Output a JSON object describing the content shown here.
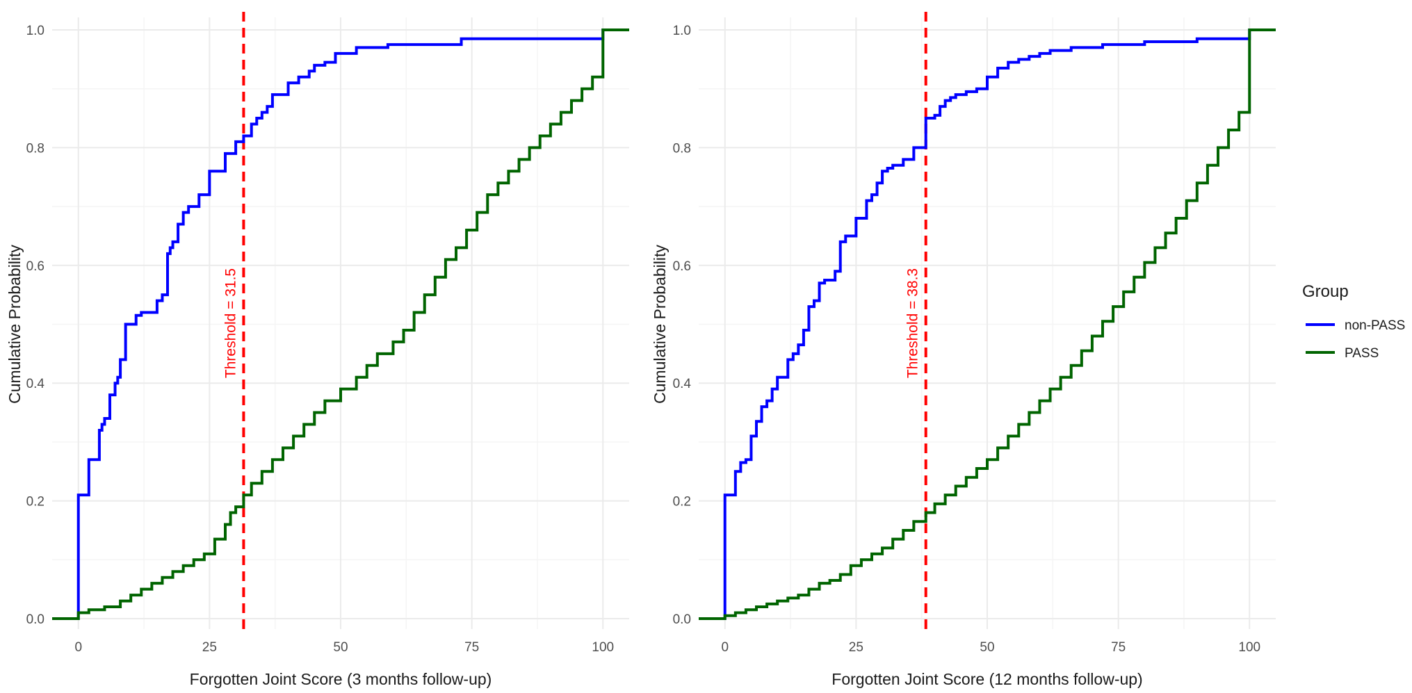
{
  "legend": {
    "title": "Group",
    "items": [
      {
        "label": "non-PASS",
        "color": "#0000FF"
      },
      {
        "label": "PASS",
        "color": "#006400"
      }
    ]
  },
  "colors": {
    "threshold": "#FF0000",
    "grid_major": "#EBEBEB",
    "grid_minor": "#F5F5F5"
  },
  "chart_data": [
    {
      "type": "line",
      "subtype": "step-ecdf",
      "xlabel": "Forgotten Joint Score (3 months follow-up)",
      "ylabel": "Cumulative Probability",
      "xlim": [
        -5,
        105
      ],
      "ylim": [
        0,
        1
      ],
      "xticks": [
        "0",
        "25",
        "50",
        "75",
        "100"
      ],
      "yticks": [
        "0.0",
        "0.2",
        "0.4",
        "0.6",
        "0.8",
        "1.0"
      ],
      "grid": true,
      "threshold": {
        "value": 31.5,
        "label": "Threshold = 31.5"
      },
      "series": [
        {
          "name": "non-PASS",
          "x": [
            -5,
            0,
            2,
            4,
            4.5,
            5,
            6,
            7,
            7.5,
            8,
            9,
            11,
            12,
            13,
            15,
            16,
            17,
            17.5,
            18,
            19,
            20,
            21,
            23,
            25,
            27,
            28,
            30,
            31.5,
            33,
            34,
            35,
            36,
            37,
            38,
            40,
            42,
            44,
            45,
            47,
            49,
            53,
            59,
            73,
            100,
            105
          ],
          "y": [
            0.0,
            0.21,
            0.27,
            0.32,
            0.33,
            0.34,
            0.38,
            0.4,
            0.41,
            0.44,
            0.5,
            0.515,
            0.52,
            0.52,
            0.54,
            0.55,
            0.62,
            0.63,
            0.64,
            0.67,
            0.69,
            0.7,
            0.72,
            0.76,
            0.76,
            0.79,
            0.81,
            0.82,
            0.84,
            0.85,
            0.86,
            0.87,
            0.89,
            0.89,
            0.91,
            0.92,
            0.93,
            0.94,
            0.945,
            0.96,
            0.97,
            0.975,
            0.985,
            1.0,
            1.0
          ]
        },
        {
          "name": "PASS",
          "x": [
            -5,
            0,
            2,
            5,
            8,
            10,
            12,
            14,
            16,
            18,
            20,
            22,
            24,
            26,
            28,
            29,
            30,
            31.5,
            33,
            35,
            37,
            39,
            41,
            43,
            45,
            47,
            50,
            53,
            55,
            57,
            60,
            62,
            64,
            66,
            68,
            70,
            72,
            74,
            76,
            78,
            80,
            82,
            84,
            86,
            88,
            90,
            92,
            94,
            96,
            98,
            100,
            105
          ],
          "y": [
            0.0,
            0.01,
            0.015,
            0.02,
            0.03,
            0.04,
            0.05,
            0.06,
            0.07,
            0.08,
            0.09,
            0.1,
            0.11,
            0.135,
            0.16,
            0.18,
            0.19,
            0.21,
            0.23,
            0.25,
            0.27,
            0.29,
            0.31,
            0.33,
            0.35,
            0.37,
            0.39,
            0.41,
            0.43,
            0.45,
            0.47,
            0.49,
            0.52,
            0.55,
            0.58,
            0.61,
            0.63,
            0.66,
            0.69,
            0.72,
            0.74,
            0.76,
            0.78,
            0.8,
            0.82,
            0.84,
            0.86,
            0.88,
            0.9,
            0.92,
            1.0,
            1.0
          ]
        }
      ]
    },
    {
      "type": "line",
      "subtype": "step-ecdf",
      "xlabel": "Forgotten Joint Score (12 months follow-up)",
      "ylabel": "Cumulative Probability",
      "xlim": [
        -5,
        105
      ],
      "ylim": [
        0,
        1
      ],
      "xticks": [
        "0",
        "25",
        "50",
        "75",
        "100"
      ],
      "yticks": [
        "0.0",
        "0.2",
        "0.4",
        "0.6",
        "0.8",
        "1.0"
      ],
      "grid": true,
      "threshold": {
        "value": 38.3,
        "label": "Threshold = 38.3"
      },
      "series": [
        {
          "name": "non-PASS",
          "x": [
            -5,
            0,
            2,
            3,
            4,
            5,
            6,
            7,
            8,
            9,
            10,
            12,
            13,
            14,
            15,
            16,
            17,
            18,
            19,
            21,
            22,
            23,
            25,
            27,
            28,
            29,
            30,
            31,
            32,
            34,
            36,
            38.3,
            40,
            41,
            42,
            43,
            44,
            46,
            48,
            50,
            52,
            54,
            56,
            58,
            60,
            62,
            66,
            72,
            80,
            90,
            100,
            105
          ],
          "y": [
            0.0,
            0.21,
            0.25,
            0.265,
            0.27,
            0.31,
            0.335,
            0.36,
            0.37,
            0.39,
            0.41,
            0.44,
            0.45,
            0.465,
            0.49,
            0.53,
            0.54,
            0.57,
            0.575,
            0.59,
            0.64,
            0.65,
            0.68,
            0.71,
            0.72,
            0.74,
            0.76,
            0.765,
            0.77,
            0.78,
            0.8,
            0.85,
            0.855,
            0.87,
            0.88,
            0.885,
            0.89,
            0.895,
            0.9,
            0.92,
            0.935,
            0.945,
            0.95,
            0.955,
            0.96,
            0.965,
            0.97,
            0.975,
            0.98,
            0.985,
            1.0,
            1.0
          ]
        },
        {
          "name": "PASS",
          "x": [
            -5,
            0,
            2,
            4,
            6,
            8,
            10,
            12,
            14,
            16,
            18,
            20,
            22,
            24,
            26,
            28,
            30,
            32,
            34,
            36,
            38.3,
            40,
            42,
            44,
            46,
            48,
            50,
            52,
            54,
            56,
            58,
            60,
            62,
            64,
            66,
            68,
            70,
            72,
            74,
            76,
            78,
            80,
            82,
            84,
            86,
            88,
            90,
            92,
            94,
            96,
            98,
            100,
            105
          ],
          "y": [
            0.0,
            0.005,
            0.01,
            0.015,
            0.02,
            0.025,
            0.03,
            0.035,
            0.04,
            0.05,
            0.06,
            0.065,
            0.075,
            0.09,
            0.1,
            0.11,
            0.12,
            0.135,
            0.15,
            0.165,
            0.18,
            0.195,
            0.21,
            0.225,
            0.24,
            0.255,
            0.27,
            0.29,
            0.31,
            0.33,
            0.35,
            0.37,
            0.39,
            0.41,
            0.43,
            0.455,
            0.48,
            0.505,
            0.53,
            0.555,
            0.58,
            0.605,
            0.63,
            0.655,
            0.68,
            0.71,
            0.74,
            0.77,
            0.8,
            0.83,
            0.86,
            1.0,
            1.0
          ]
        }
      ]
    }
  ]
}
